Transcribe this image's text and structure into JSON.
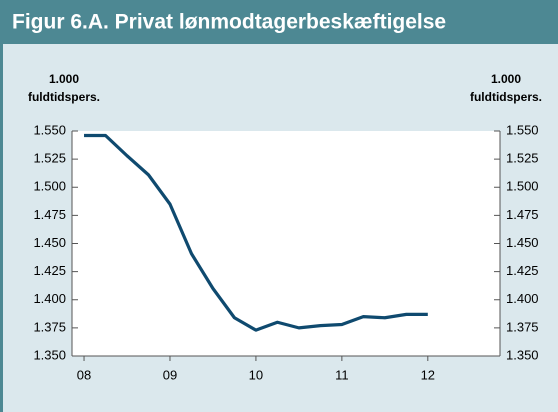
{
  "chart_data": {
    "type": "line",
    "title": "Figur 6.A. Privat lønmodtagerbeskæftigelse",
    "ylabel": [
      "1.000",
      "fuldtidspers."
    ],
    "y2label": [
      "1.000",
      "fuldtidspers."
    ],
    "x": [
      8,
      8.25,
      8.5,
      8.75,
      9,
      9.25,
      9.5,
      9.75,
      10,
      10.25,
      10.5,
      10.75,
      11,
      11.25,
      11.5,
      11.75,
      12
    ],
    "series": [
      {
        "color": "#0f4a6f",
        "values": [
          1546,
          1546,
          1528,
          1511,
          1485,
          1441,
          1410,
          1384,
          1373,
          1380,
          1375,
          1377,
          1378,
          1385,
          1384,
          1387,
          1387
        ]
      }
    ],
    "xlim": [
      7.86,
      12.84
    ],
    "xticks": [
      {
        "value": 8,
        "label": "08"
      },
      {
        "value": 9,
        "label": "09"
      },
      {
        "value": 10,
        "label": "10"
      },
      {
        "value": 11,
        "label": "11"
      },
      {
        "value": 12,
        "label": "12"
      }
    ],
    "ylim": [
      1350,
      1550
    ],
    "yticks": [
      {
        "value": 1350,
        "label": "1.350"
      },
      {
        "value": 1375,
        "label": "1.375"
      },
      {
        "value": 1400,
        "label": "1.400"
      },
      {
        "value": 1425,
        "label": "1.425"
      },
      {
        "value": 1450,
        "label": "1.450"
      },
      {
        "value": 1475,
        "label": "1.475"
      },
      {
        "value": 1500,
        "label": "1.500"
      },
      {
        "value": 1525,
        "label": "1.525"
      },
      {
        "value": 1550,
        "label": "1.550"
      }
    ],
    "y2lim": [
      1350,
      1550
    ],
    "y2ticks": [
      {
        "value": 1350,
        "label": "1.350"
      },
      {
        "value": 1375,
        "label": "1.375"
      },
      {
        "value": 1400,
        "label": "1.400"
      },
      {
        "value": 1425,
        "label": "1.425"
      },
      {
        "value": 1450,
        "label": "1.450"
      },
      {
        "value": 1475,
        "label": "1.475"
      },
      {
        "value": 1500,
        "label": "1.500"
      },
      {
        "value": 1525,
        "label": "1.525"
      },
      {
        "value": 1550,
        "label": "1.550"
      }
    ],
    "grid": false
  }
}
